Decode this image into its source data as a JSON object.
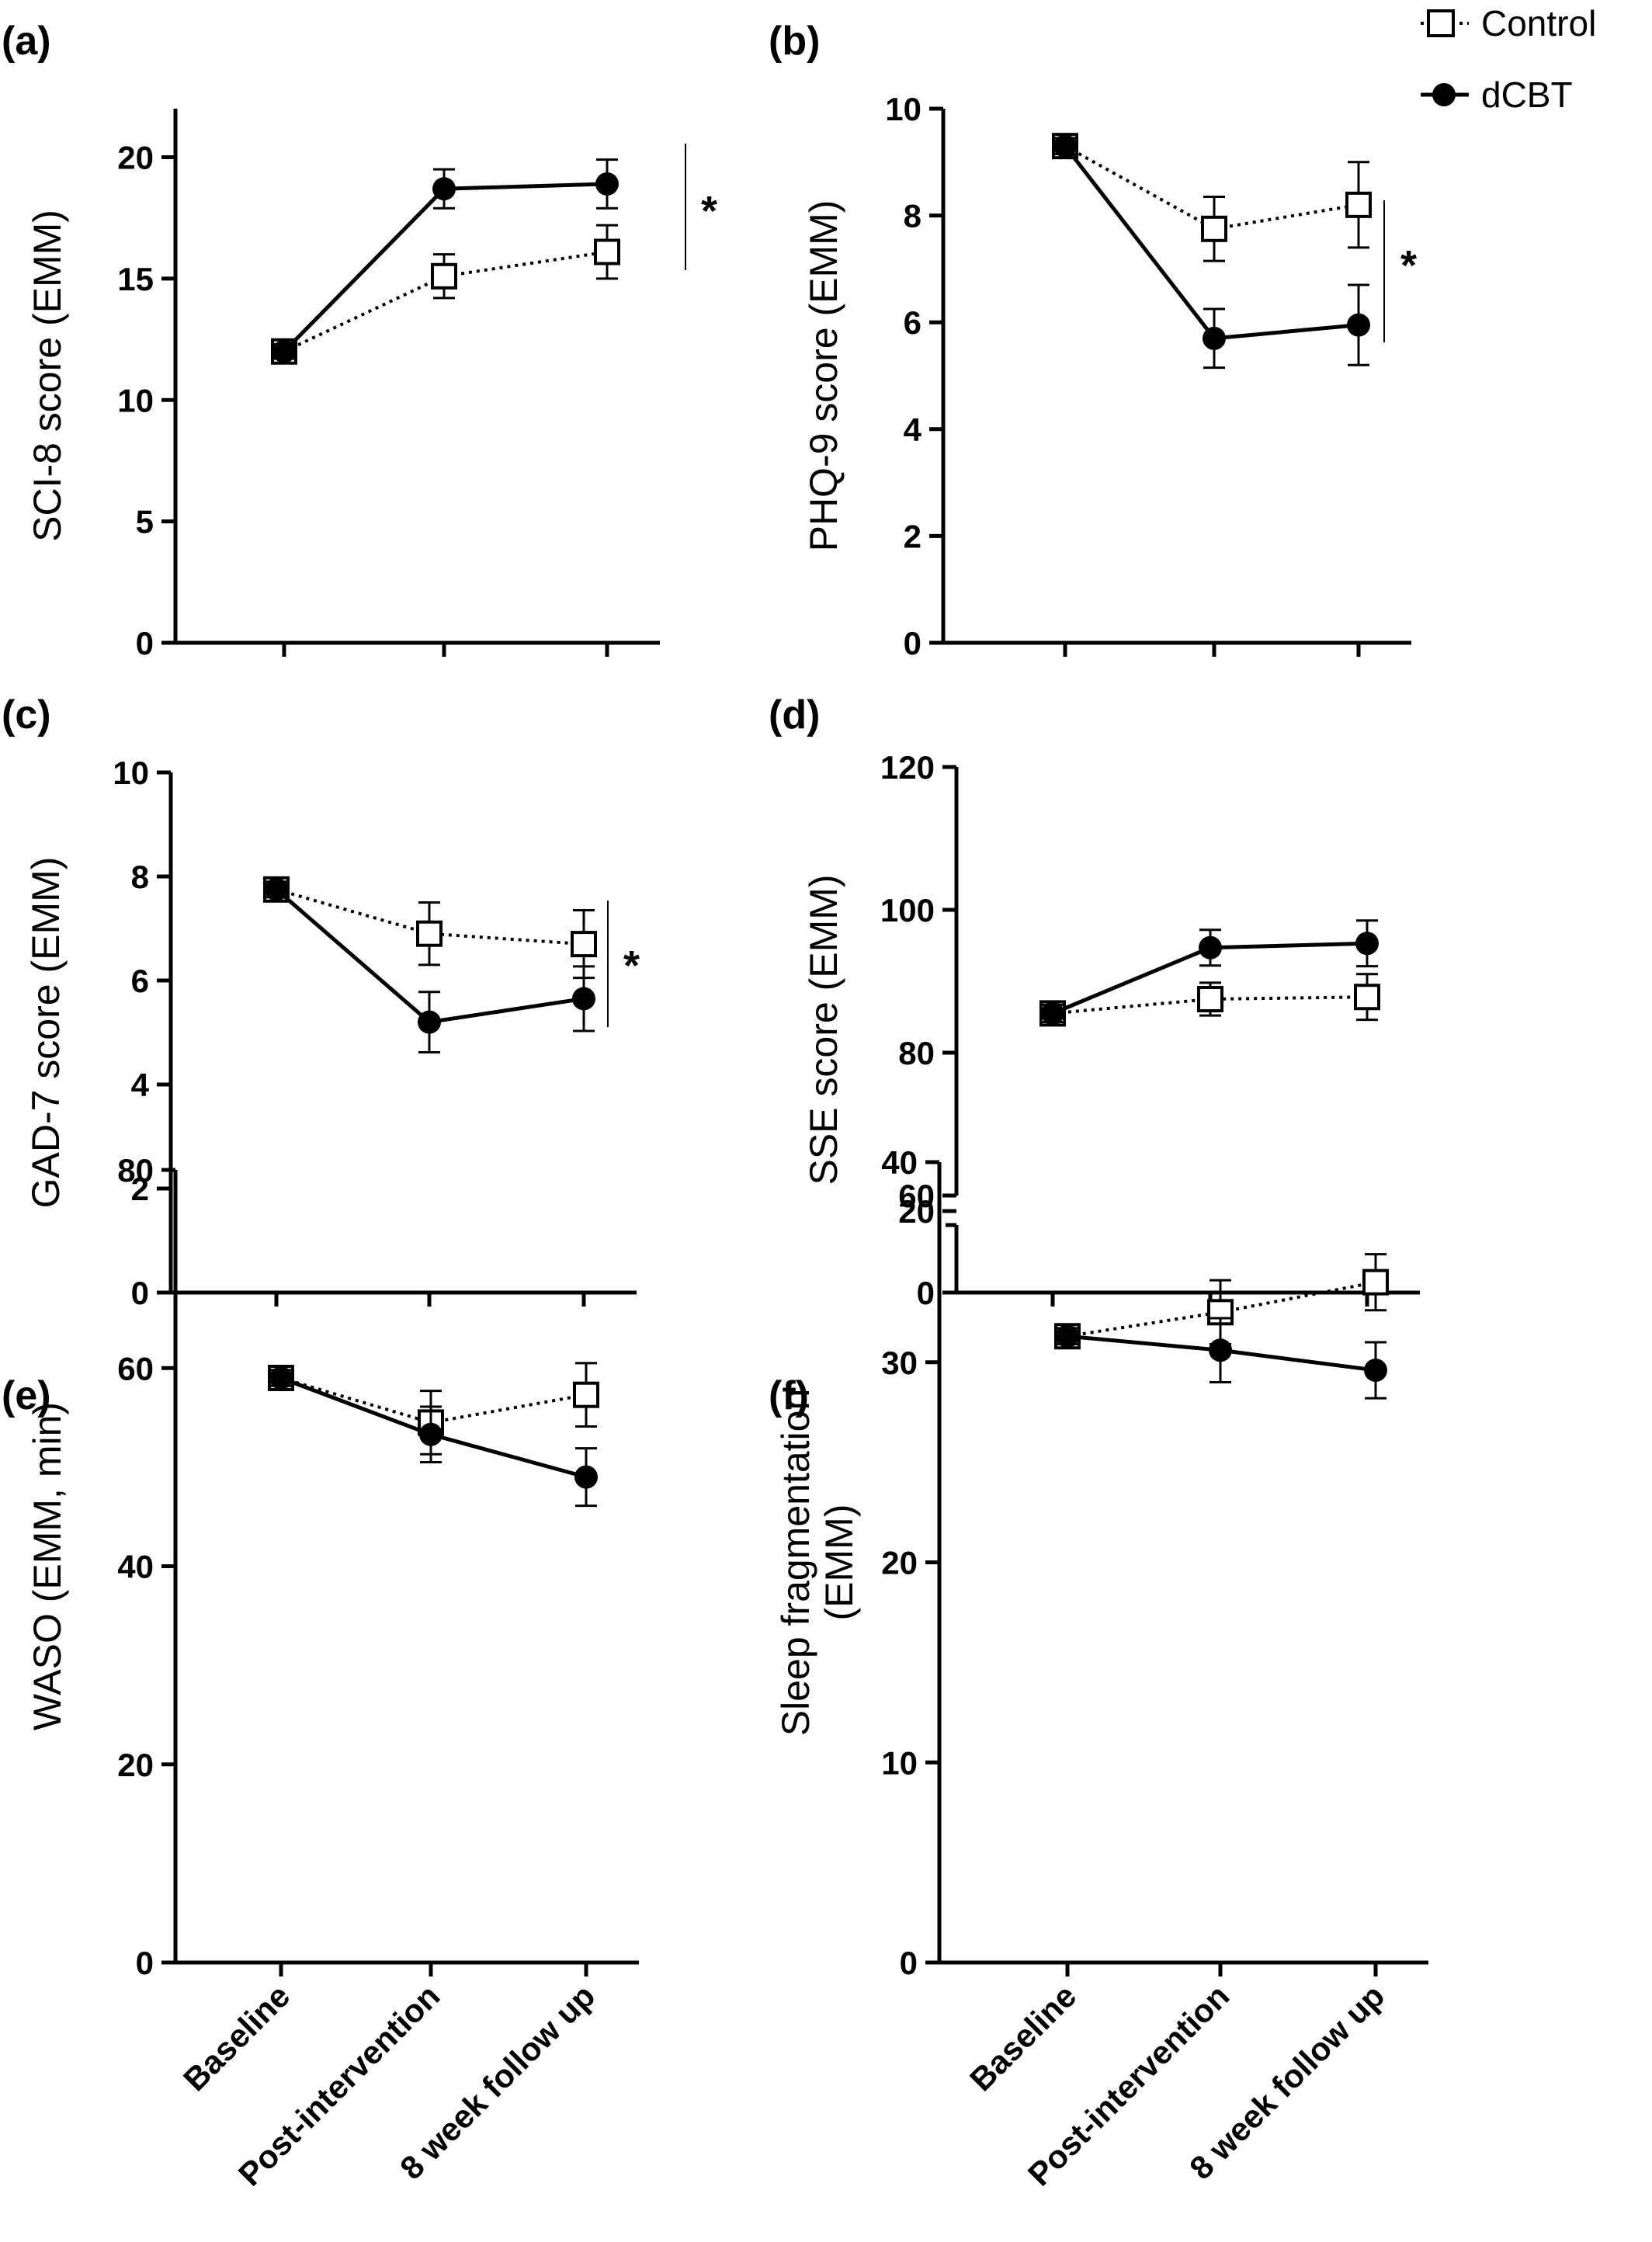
{
  "legend": {
    "control": "Control",
    "dcbt": "dCBT"
  },
  "x_categories": [
    "Baseline",
    "Post-intervention",
    "8 week follow up"
  ],
  "chart_data": [
    {
      "id": "a",
      "panel_label": "(a)",
      "type": "line",
      "ylabel": "SCI-8 score (EMM)",
      "ylabel_lines": [
        "SCI-8 score (EMM)"
      ],
      "ylim": [
        0,
        22
      ],
      "yticks": [
        0,
        5,
        10,
        15,
        20
      ],
      "categories": [
        "Baseline",
        "Post-intervention",
        "8 week follow up"
      ],
      "series": [
        {
          "name": "Control",
          "values": [
            12.0,
            15.1,
            16.1
          ],
          "errors": [
            0.3,
            0.9,
            1.1
          ]
        },
        {
          "name": "dCBT",
          "values": [
            12.0,
            18.7,
            18.9
          ],
          "errors": [
            0.3,
            0.8,
            1.0
          ]
        }
      ],
      "significance": "*"
    },
    {
      "id": "b",
      "panel_label": "(b)",
      "type": "line",
      "ylabel": "PHQ-9 score (EMM)",
      "ylabel_lines": [
        "PHQ-9 score (EMM)"
      ],
      "ylim": [
        0,
        10
      ],
      "yticks": [
        0,
        2,
        4,
        6,
        8,
        10
      ],
      "categories": [
        "Baseline",
        "Post-intervention",
        "8 week follow up"
      ],
      "series": [
        {
          "name": "Control",
          "values": [
            9.3,
            7.75,
            8.2
          ],
          "errors": [
            0.15,
            0.6,
            0.8
          ]
        },
        {
          "name": "dCBT",
          "values": [
            9.3,
            5.7,
            5.95
          ],
          "errors": [
            0.15,
            0.55,
            0.75
          ]
        }
      ],
      "significance": "*"
    },
    {
      "id": "c",
      "panel_label": "(c)",
      "type": "line",
      "ylabel": "GAD-7 score (EMM)",
      "ylabel_lines": [
        "GAD-7 score (EMM)"
      ],
      "ylim": [
        0,
        10
      ],
      "yticks": [
        0,
        2,
        4,
        6,
        8,
        10
      ],
      "categories": [
        "Baseline",
        "Post-intervention",
        "8 week follow up"
      ],
      "series": [
        {
          "name": "Control",
          "values": [
            7.75,
            6.9,
            6.7
          ],
          "errors": [
            0.15,
            0.6,
            0.65
          ]
        },
        {
          "name": "dCBT",
          "values": [
            7.75,
            5.2,
            5.65
          ],
          "errors": [
            0.15,
            0.58,
            0.62
          ]
        }
      ],
      "significance": "*"
    },
    {
      "id": "d",
      "panel_label": "(d)",
      "type": "line",
      "ylabel": "SSE score (EMM)",
      "ylabel_lines": [
        "SSE score (EMM)"
      ],
      "ylim": [
        0,
        120
      ],
      "yticks": [
        0,
        20,
        60,
        80,
        100,
        120
      ],
      "axis_break": [
        20,
        60
      ],
      "categories": [
        "Baseline",
        "Post-intervention",
        "8 week follow up"
      ],
      "series": [
        {
          "name": "Control",
          "values": [
            85.5,
            87.5,
            87.8
          ],
          "errors": [
            1.2,
            2.3,
            3.2
          ]
        },
        {
          "name": "dCBT",
          "values": [
            85.5,
            94.7,
            95.3
          ],
          "errors": [
            1.2,
            2.5,
            3.2
          ]
        }
      ],
      "significance": ""
    },
    {
      "id": "e",
      "panel_label": "(e)",
      "type": "line",
      "ylabel": "WASO (EMM, min)",
      "ylabel_lines": [
        "WASO (EMM, min)"
      ],
      "ylim": [
        0,
        80
      ],
      "yticks": [
        0,
        20,
        40,
        60,
        80
      ],
      "categories": [
        "Baseline",
        "Post-intervention",
        "8 week follow up"
      ],
      "series": [
        {
          "name": "Control",
          "values": [
            59.0,
            54.5,
            57.3
          ],
          "errors": [
            0.8,
            3.2,
            3.2
          ]
        },
        {
          "name": "dCBT",
          "values": [
            59.0,
            53.3,
            49.0
          ],
          "errors": [
            0.8,
            2.8,
            2.9
          ]
        }
      ],
      "significance": ""
    },
    {
      "id": "f",
      "panel_label": "(f)",
      "type": "line",
      "ylabel": "Sleep fragmentation (EMM)",
      "ylabel_lines": [
        "Sleep fragmentation",
        "(EMM)"
      ],
      "ylim": [
        0,
        40
      ],
      "yticks": [
        0,
        10,
        20,
        30,
        40
      ],
      "categories": [
        "Baseline",
        "Post-intervention",
        "8 week follow up"
      ],
      "series": [
        {
          "name": "Control",
          "values": [
            31.3,
            32.5,
            34.0
          ],
          "errors": [
            0.4,
            1.6,
            1.4
          ]
        },
        {
          "name": "dCBT",
          "values": [
            31.3,
            30.6,
            29.6
          ],
          "errors": [
            0.4,
            1.6,
            1.4
          ]
        }
      ],
      "significance": ""
    }
  ]
}
